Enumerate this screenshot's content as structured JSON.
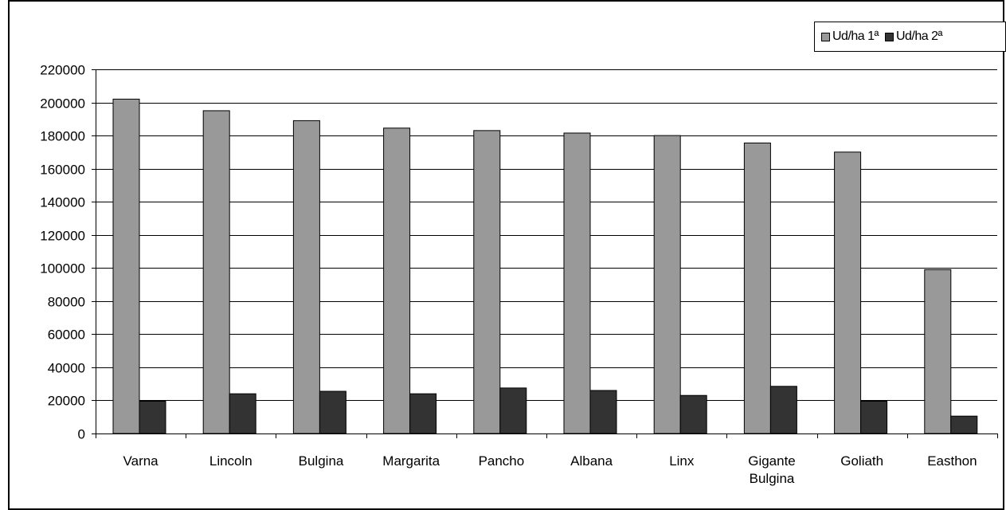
{
  "chart_data": {
    "type": "bar",
    "title": "",
    "xlabel": "",
    "ylabel": "",
    "categories": [
      "Varna",
      "Lincoln",
      "Bulgina",
      "Margarita",
      "Pancho",
      "Albana",
      "Linx",
      "Gigante Bulgina",
      "Goliath",
      "Easthon"
    ],
    "series": [
      {
        "name": "Ud/ha 1ª",
        "color": "#999999",
        "values": [
          202000,
          195000,
          189000,
          184500,
          183000,
          181500,
          180000,
          175500,
          170000,
          99000
        ]
      },
      {
        "name": "Ud/ha 2ª",
        "color": "#333333",
        "values": [
          19500,
          24000,
          25500,
          24000,
          27500,
          26000,
          23000,
          28500,
          19500,
          10500
        ]
      }
    ],
    "ylim": [
      0,
      220000
    ],
    "yticks": [
      0,
      20000,
      40000,
      60000,
      80000,
      100000,
      120000,
      140000,
      160000,
      180000,
      200000,
      220000
    ],
    "grid": true,
    "legend": "top-right"
  }
}
